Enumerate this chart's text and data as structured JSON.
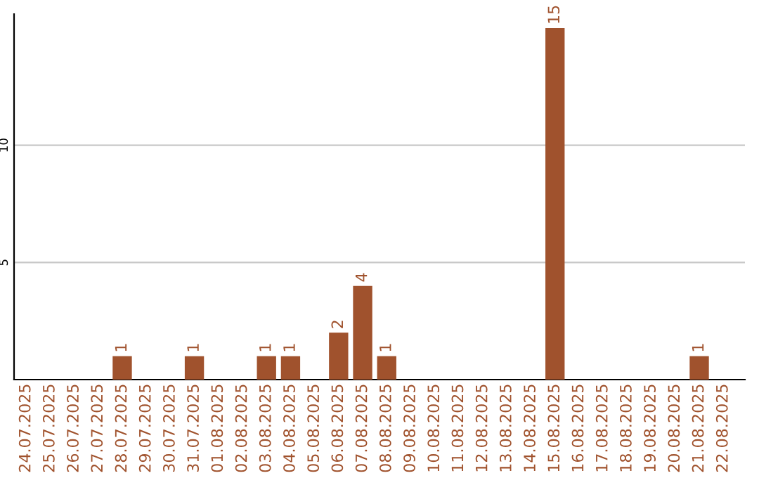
{
  "chart_data": {
    "type": "bar",
    "categories": [
      "24.07.2025",
      "25.07.2025",
      "26.07.2025",
      "27.07.2025",
      "28.07.2025",
      "29.07.2025",
      "30.07.2025",
      "31.07.2025",
      "01.08.2025",
      "02.08.2025",
      "03.08.2025",
      "04.08.2025",
      "05.08.2025",
      "06.08.2025",
      "07.08.2025",
      "08.08.2025",
      "09.08.2025",
      "10.08.2025",
      "11.08.2025",
      "12.08.2025",
      "13.08.2025",
      "14.08.2025",
      "15.08.2025",
      "16.08.2025",
      "17.08.2025",
      "18.08.2025",
      "19.08.2025",
      "20.08.2025",
      "21.08.2025",
      "22.08.2025"
    ],
    "values": [
      0,
      0,
      0,
      0,
      1,
      0,
      0,
      1,
      0,
      0,
      1,
      1,
      0,
      2,
      4,
      1,
      0,
      0,
      0,
      0,
      0,
      0,
      15,
      0,
      0,
      0,
      0,
      0,
      1,
      0
    ],
    "value_labels": [
      null,
      null,
      null,
      null,
      "1",
      null,
      null,
      "1",
      null,
      null,
      "1",
      "1",
      null,
      "2",
      "4",
      "1",
      null,
      null,
      null,
      null,
      null,
      null,
      "15",
      null,
      null,
      null,
      null,
      null,
      "1",
      null
    ],
    "color": "#a0522d",
    "ylim": [
      0,
      15.6
    ],
    "yticks": [
      5,
      10
    ],
    "grid": "y"
  }
}
